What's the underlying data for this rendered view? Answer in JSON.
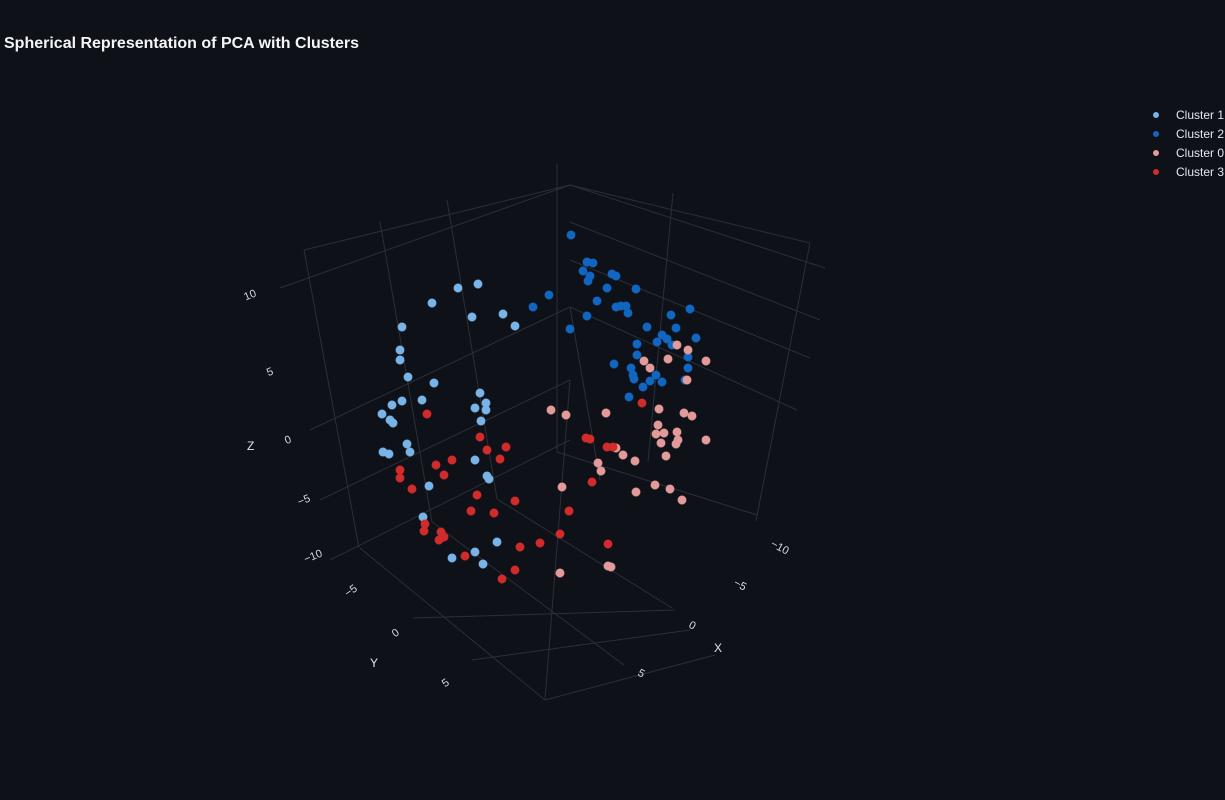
{
  "chart_data": {
    "type": "scatter",
    "title": "Spherical Representation of PCA with Clusters",
    "xlabel": "X",
    "ylabel": "Y",
    "zlabel": "Z",
    "x_ticks": [
      "−10",
      "−5",
      "0",
      "5"
    ],
    "y_ticks": [
      "−5",
      "0",
      "5"
    ],
    "z_ticks": [
      "−10",
      "−5",
      "0",
      "5",
      "10"
    ],
    "grid": true,
    "legend_position": "top-right",
    "series": [
      {
        "name": "Cluster 1",
        "color": "#79b4e8",
        "points": [
          [
            432,
            303
          ],
          [
            458,
            288
          ],
          [
            478,
            284
          ],
          [
            472,
            317
          ],
          [
            503,
            314
          ],
          [
            515,
            326
          ],
          [
            402,
            327
          ],
          [
            400,
            350
          ],
          [
            400,
            360
          ],
          [
            408,
            377
          ],
          [
            434,
            383
          ],
          [
            480,
            393
          ],
          [
            486,
            403
          ],
          [
            486,
            410
          ],
          [
            475,
            408
          ],
          [
            481,
            421
          ],
          [
            402,
            401
          ],
          [
            392,
            405
          ],
          [
            382,
            414
          ],
          [
            390,
            420
          ],
          [
            393,
            423
          ],
          [
            422,
            400
          ],
          [
            407,
            444
          ],
          [
            410,
            452
          ],
          [
            383,
            452
          ],
          [
            389,
            454
          ],
          [
            475,
            460
          ],
          [
            487,
            476
          ],
          [
            489,
            479
          ],
          [
            429,
            486
          ],
          [
            423,
            517
          ],
          [
            497,
            542
          ],
          [
            475,
            552
          ],
          [
            452,
            558
          ],
          [
            483,
            564
          ]
        ]
      },
      {
        "name": "Cluster 2",
        "color": "#1166c2",
        "points": [
          [
            571,
            235
          ],
          [
            587,
            262
          ],
          [
            593,
            263
          ],
          [
            583,
            271
          ],
          [
            590,
            276
          ],
          [
            588,
            281
          ],
          [
            612,
            274
          ],
          [
            616,
            276
          ],
          [
            607,
            288
          ],
          [
            636,
            289
          ],
          [
            549,
            295
          ],
          [
            533,
            307
          ],
          [
            597,
            301
          ],
          [
            616,
            307
          ],
          [
            621,
            306
          ],
          [
            626,
            306
          ],
          [
            628,
            313
          ],
          [
            587,
            316
          ],
          [
            570,
            329
          ],
          [
            647,
            327
          ],
          [
            671,
            315
          ],
          [
            690,
            309
          ],
          [
            676,
            328
          ],
          [
            662,
            335
          ],
          [
            667,
            339
          ],
          [
            672,
            345
          ],
          [
            657,
            342
          ],
          [
            637,
            344
          ],
          [
            696,
            338
          ],
          [
            637,
            355
          ],
          [
            688,
            357
          ],
          [
            614,
            364
          ],
          [
            631,
            368
          ],
          [
            633,
            375
          ],
          [
            634,
            379
          ],
          [
            688,
            368
          ],
          [
            650,
            381
          ],
          [
            662,
            382
          ],
          [
            643,
            387
          ],
          [
            656,
            375
          ],
          [
            685,
            380
          ],
          [
            629,
            397
          ]
        ]
      },
      {
        "name": "Cluster 0",
        "color": "#e39a9a",
        "points": [
          [
            644,
            361
          ],
          [
            650,
            368
          ],
          [
            668,
            359
          ],
          [
            677,
            345
          ],
          [
            688,
            350
          ],
          [
            706,
            361
          ],
          [
            687,
            380
          ],
          [
            551,
            410
          ],
          [
            566,
            415
          ],
          [
            606,
            413
          ],
          [
            659,
            409
          ],
          [
            684,
            413
          ],
          [
            692,
            416
          ],
          [
            658,
            425
          ],
          [
            656,
            434
          ],
          [
            664,
            433
          ],
          [
            661,
            443
          ],
          [
            677,
            432
          ],
          [
            678,
            440
          ],
          [
            676,
            444
          ],
          [
            706,
            440
          ],
          [
            616,
            448
          ],
          [
            623,
            455
          ],
          [
            635,
            461
          ],
          [
            598,
            463
          ],
          [
            601,
            471
          ],
          [
            666,
            456
          ],
          [
            655,
            485
          ],
          [
            670,
            489
          ],
          [
            682,
            500
          ],
          [
            562,
            487
          ],
          [
            636,
            492
          ],
          [
            560,
            573
          ],
          [
            608,
            566
          ],
          [
            611,
            567
          ]
        ]
      },
      {
        "name": "Cluster 3",
        "color": "#d22b2b",
        "points": [
          [
            642,
            403
          ],
          [
            427,
            414
          ],
          [
            480,
            437
          ],
          [
            586,
            438
          ],
          [
            590,
            439
          ],
          [
            607,
            447
          ],
          [
            613,
            447
          ],
          [
            506,
            447
          ],
          [
            487,
            450
          ],
          [
            452,
            460
          ],
          [
            436,
            465
          ],
          [
            500,
            459
          ],
          [
            400,
            470
          ],
          [
            444,
            475
          ],
          [
            400,
            478
          ],
          [
            412,
            489
          ],
          [
            477,
            495
          ],
          [
            592,
            482
          ],
          [
            471,
            511
          ],
          [
            494,
            513
          ],
          [
            515,
            501
          ],
          [
            569,
            511
          ],
          [
            425,
            524
          ],
          [
            424,
            531
          ],
          [
            441,
            532
          ],
          [
            444,
            537
          ],
          [
            439,
            540
          ],
          [
            560,
            534
          ],
          [
            540,
            543
          ],
          [
            520,
            547
          ],
          [
            608,
            544
          ],
          [
            465,
            556
          ],
          [
            515,
            570
          ],
          [
            502,
            579
          ]
        ]
      }
    ]
  }
}
